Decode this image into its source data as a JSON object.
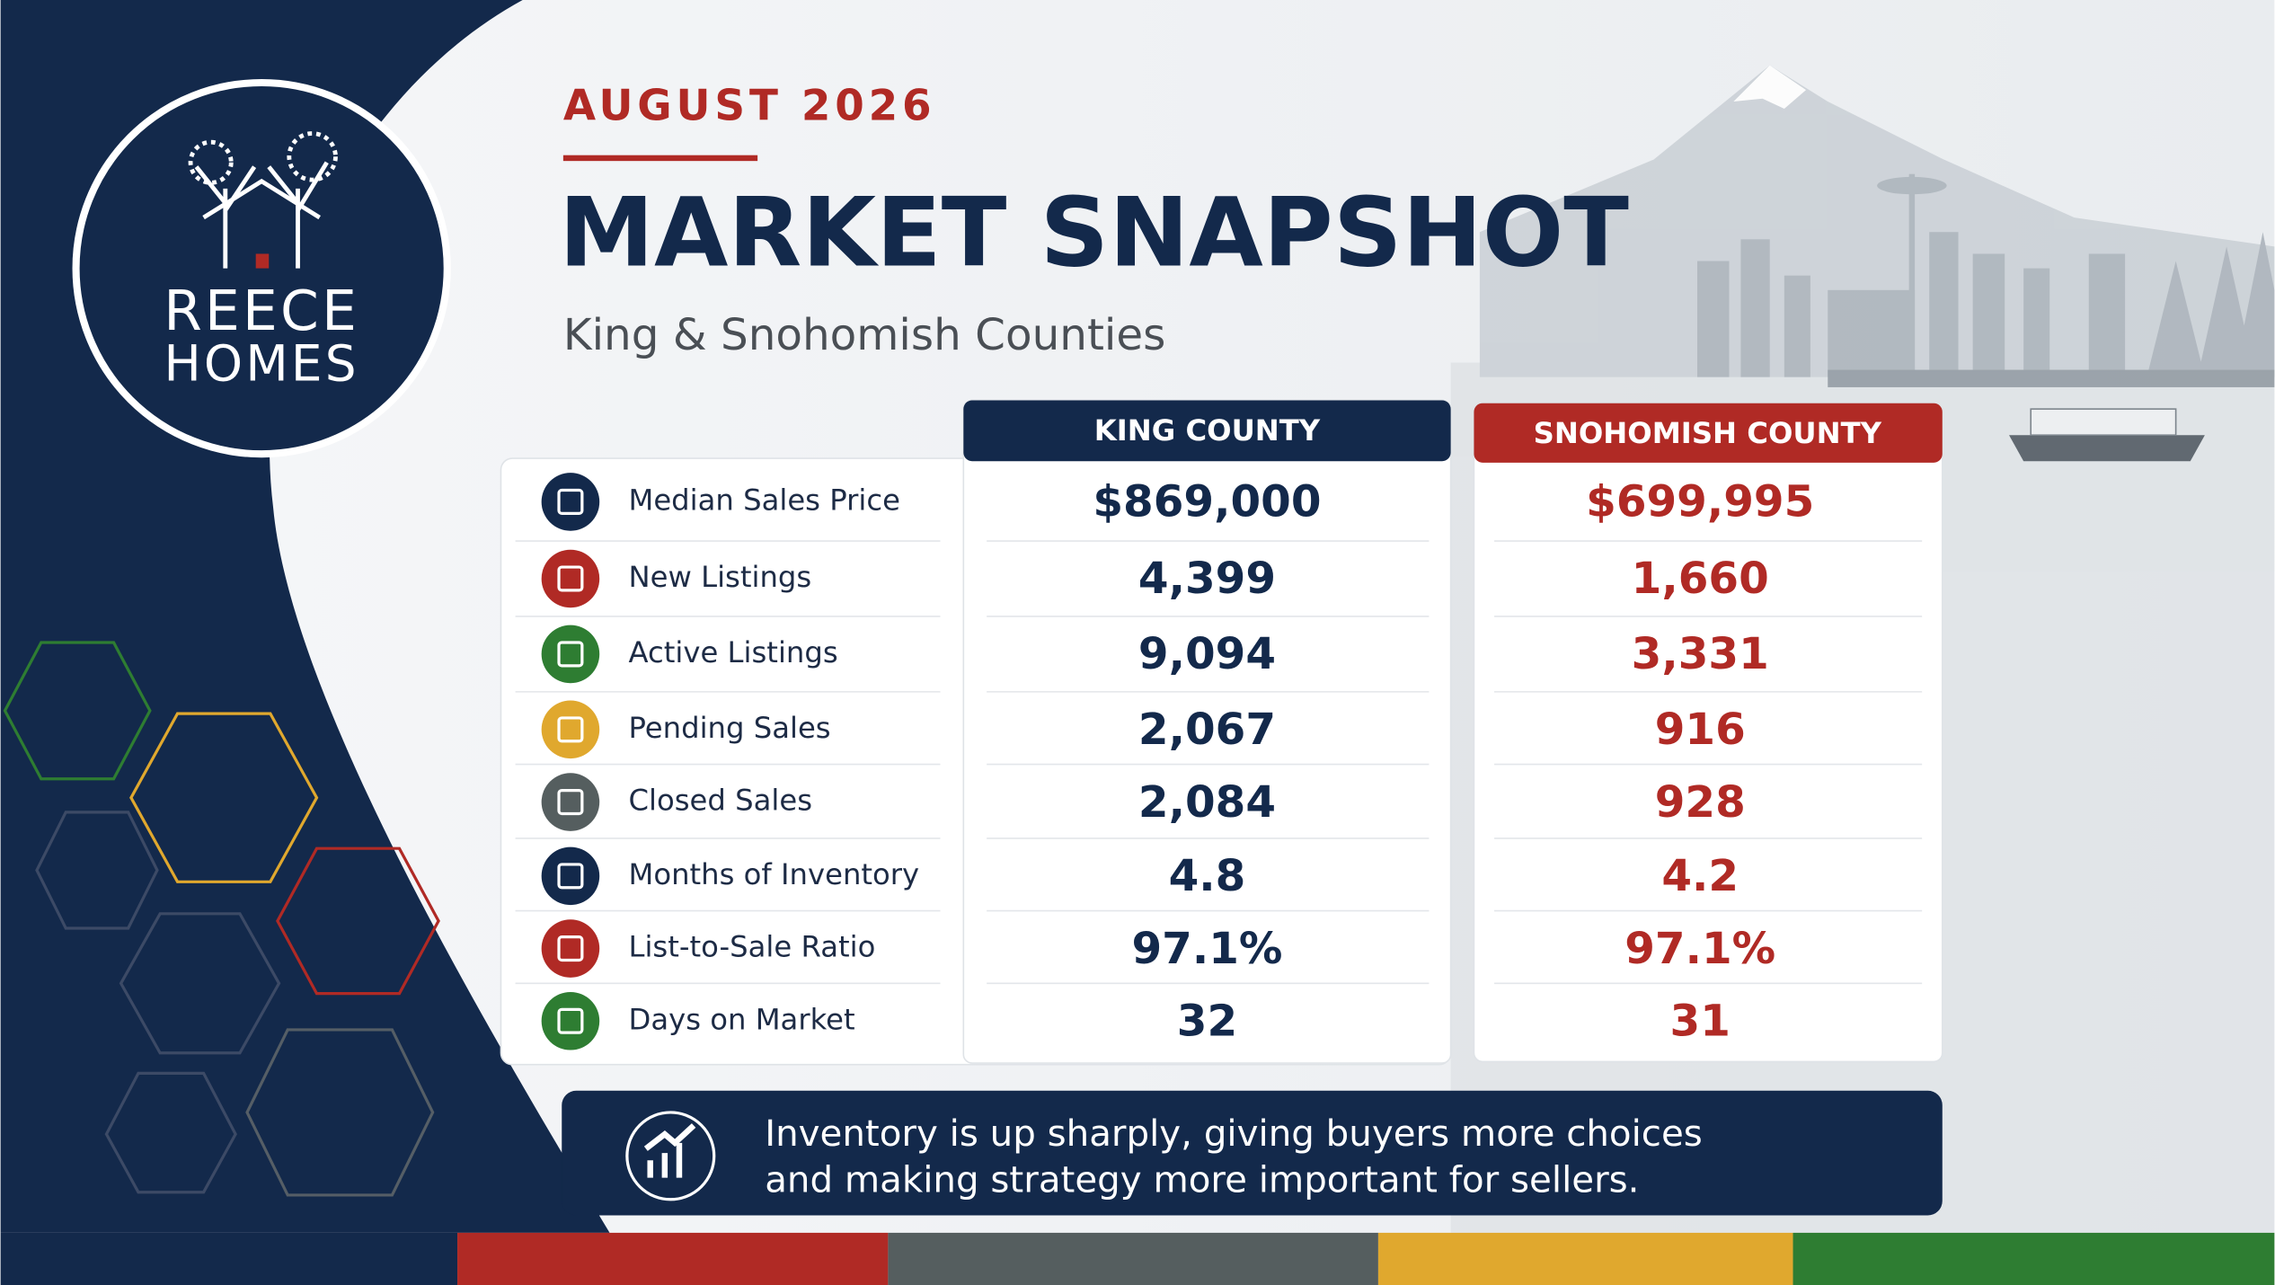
{
  "brand": {
    "line1": "REECE",
    "line2": "HOMES"
  },
  "header": {
    "kicker": "AUGUST 2026",
    "title": "MARKET SNAPSHOT",
    "subtitle": "King & Snohomish Counties"
  },
  "table": {
    "columns": [
      "KING COUNTY",
      "SNOHOMISH COUNTY"
    ],
    "rows": [
      [
        "Median Sales Price",
        "$869,000",
        "$699,995"
      ],
      [
        "New Listings",
        "4,399",
        "1,660"
      ],
      [
        "Active Listings",
        "9,094",
        "3,331"
      ],
      [
        "Pending Sales",
        "2,067",
        "916"
      ],
      [
        "Closed Sales",
        "2,084",
        "928"
      ],
      [
        "Months of Inventory",
        "4.8",
        "4.2"
      ],
      [
        "List-to-Sale Ratio",
        "97.1%",
        "97.1%"
      ],
      [
        "Days on Market",
        "32",
        "31"
      ]
    ]
  },
  "note": {
    "lines": [
      "Inventory is up sharply, giving buyers more choices",
      "and making strategy more important for sellers."
    ]
  }
}
